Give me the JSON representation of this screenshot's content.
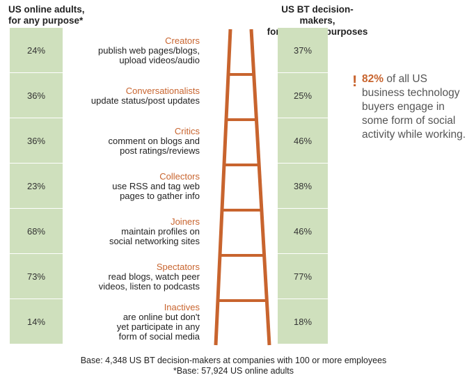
{
  "headers": {
    "left": [
      "US online adults,",
      "for any purpose*"
    ],
    "right": [
      "US BT decision-makers,",
      "for business purposes"
    ]
  },
  "chart_data": {
    "type": "table",
    "categories": [
      {
        "name": "Creators",
        "desc": [
          "publish web pages/blogs,",
          "upload videos/audio"
        ]
      },
      {
        "name": "Conversationalists",
        "desc": [
          "update status/post updates"
        ]
      },
      {
        "name": "Critics",
        "desc": [
          "comment on blogs and",
          "post ratings/reviews"
        ]
      },
      {
        "name": "Collectors",
        "desc": [
          "use RSS and tag web",
          "pages to gather info"
        ]
      },
      {
        "name": "Joiners",
        "desc": [
          "maintain profiles on",
          "social networking sites"
        ]
      },
      {
        "name": "Spectators",
        "desc": [
          "read blogs, watch peer",
          "videos, listen to podcasts"
        ]
      },
      {
        "name": "Inactives",
        "desc": [
          "are online but don't",
          "yet participate in any",
          "form of social media"
        ]
      }
    ],
    "series": [
      {
        "name": "US online adults, for any purpose*",
        "values": [
          "24%",
          "36%",
          "36%",
          "23%",
          "68%",
          "73%",
          "14%"
        ]
      },
      {
        "name": "US BT decision-makers, for business purposes",
        "values": [
          "37%",
          "25%",
          "46%",
          "38%",
          "46%",
          "77%",
          "18%"
        ]
      }
    ]
  },
  "callout": {
    "mark": "!",
    "highlight": "82%",
    "text": "of all US business technology buyers engage in some form of social activity while working."
  },
  "footnotes": [
    "Base: 4,348 US BT decision-makers at companies with 100 or more employees",
    "*Base: 57,924 US online adults"
  ],
  "colors": {
    "accent": "#c8642e",
    "cell": "#cfe0bd"
  }
}
